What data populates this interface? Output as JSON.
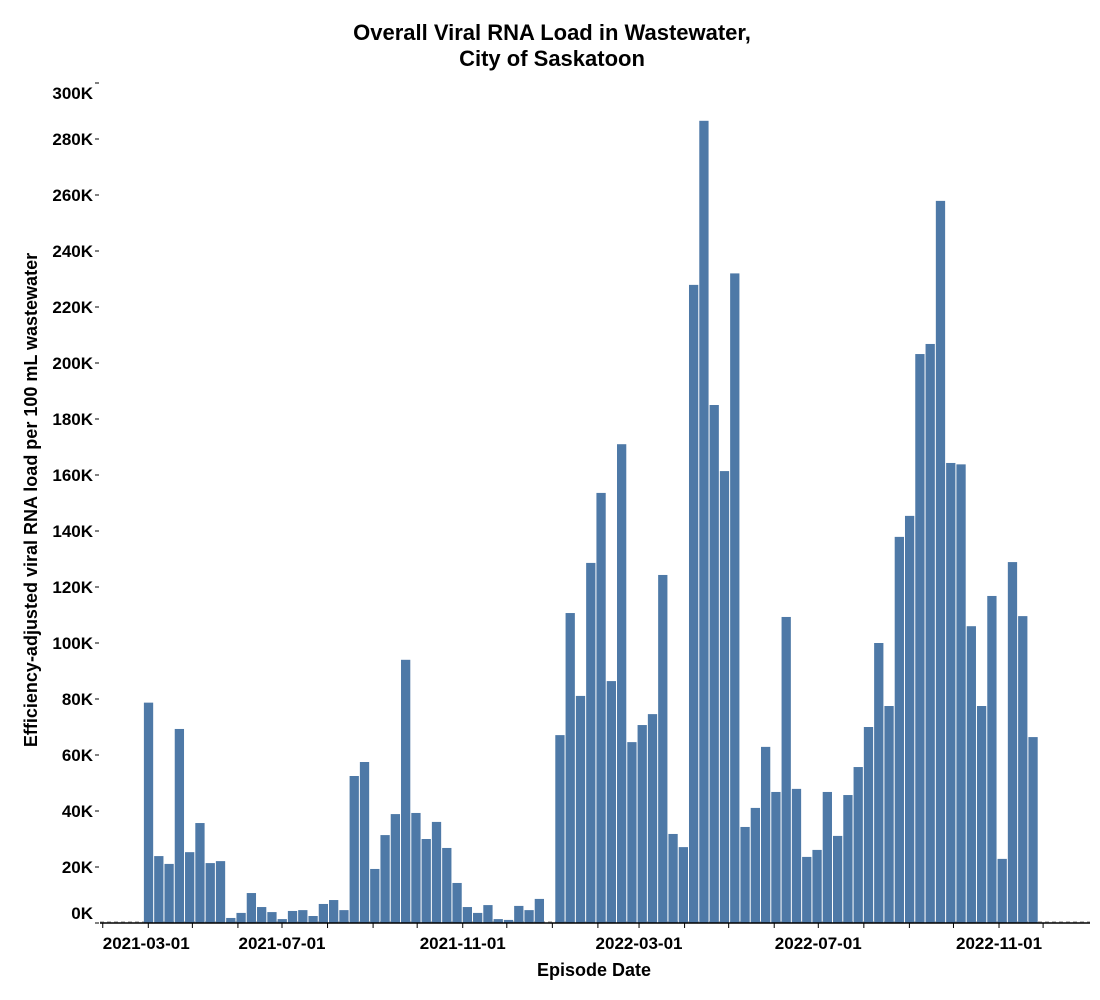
{
  "chart_data": {
    "type": "bar",
    "title": [
      "Overall Viral RNA Load in Wastewater,",
      "City of Saskatoon"
    ],
    "xlabel": "Episode Date",
    "ylabel": "Efficiency-adjusted viral RNA load per 100 mL wastewater",
    "ylim": [
      0,
      300000
    ],
    "yticks": [
      0,
      20000,
      40000,
      60000,
      80000,
      100000,
      120000,
      140000,
      160000,
      180000,
      200000,
      220000,
      240000,
      260000,
      280000,
      300000
    ],
    "ytick_labels": [
      "0K",
      "20K",
      "40K",
      "60K",
      "80K",
      "100K",
      "120K",
      "140K",
      "160K",
      "180K",
      "200K",
      "220K",
      "240K",
      "260K",
      "280K",
      "300K"
    ],
    "xlim": [
      "2021-03-01",
      "2022-12-31"
    ],
    "xtick_labels": [
      "2021-03-01",
      "2021-07-01",
      "2021-11-01",
      "2022-03-01",
      "2022-07-01",
      "2022-11-01"
    ],
    "grid": false,
    "bar_color": "#4e79a7",
    "baseline_color": "#aaaaaa",
    "x": [
      "2021-03-29",
      "2021-04-05",
      "2021-04-12",
      "2021-04-19",
      "2021-04-26",
      "2021-05-03",
      "2021-05-10",
      "2021-05-17",
      "2021-05-24",
      "2021-05-31",
      "2021-06-07",
      "2021-06-14",
      "2021-06-21",
      "2021-06-28",
      "2021-07-05",
      "2021-07-12",
      "2021-07-19",
      "2021-07-26",
      "2021-08-02",
      "2021-08-09",
      "2021-08-16",
      "2021-08-23",
      "2021-08-30",
      "2021-09-06",
      "2021-09-13",
      "2021-09-20",
      "2021-09-27",
      "2021-10-04",
      "2021-10-11",
      "2021-10-18",
      "2021-10-25",
      "2021-11-01",
      "2021-11-08",
      "2021-11-15",
      "2021-11-22",
      "2021-11-29",
      "2021-12-06",
      "2021-12-13",
      "2021-12-20",
      "2021-12-27",
      "2022-01-03",
      "2022-01-10",
      "2022-01-17",
      "2022-01-24",
      "2022-01-31",
      "2022-02-07",
      "2022-02-14",
      "2022-02-21",
      "2022-02-28",
      "2022-03-07",
      "2022-03-14",
      "2022-03-21",
      "2022-03-28",
      "2022-04-04",
      "2022-04-11",
      "2022-04-18",
      "2022-04-25",
      "2022-05-02",
      "2022-05-09",
      "2022-05-16",
      "2022-05-23",
      "2022-05-30",
      "2022-06-06",
      "2022-06-13",
      "2022-06-20",
      "2022-06-27",
      "2022-07-04",
      "2022-07-11",
      "2022-07-18",
      "2022-07-25",
      "2022-08-01",
      "2022-08-08",
      "2022-08-15",
      "2022-08-22",
      "2022-08-29",
      "2022-09-05",
      "2022-09-12",
      "2022-09-19",
      "2022-09-26",
      "2022-10-03",
      "2022-10-10",
      "2022-10-17",
      "2022-10-24",
      "2022-10-31",
      "2022-11-07",
      "2022-11-14",
      "2022-11-21"
    ],
    "values": [
      78700,
      23900,
      21100,
      69300,
      25300,
      35700,
      21400,
      22100,
      1800,
      3600,
      10700,
      5700,
      3900,
      1400,
      4300,
      4600,
      2500,
      6800,
      8200,
      4600,
      52500,
      57500,
      19300,
      31400,
      38900,
      94000,
      39300,
      30000,
      36100,
      26800,
      14300,
      5700,
      3600,
      6400,
      1400,
      1100,
      6100,
      4600,
      8600,
      null,
      67100,
      110700,
      81100,
      128600,
      153600,
      86400,
      171000,
      64600,
      70700,
      74600,
      124300,
      31800,
      27100,
      227900,
      286500,
      185000,
      161400,
      232000,
      34300,
      41100,
      62900,
      46800,
      109300,
      47900,
      23600,
      26100,
      46800,
      31100,
      45700,
      55700,
      70000,
      100000,
      77500,
      137900,
      145400,
      203200,
      206800,
      257900,
      164300,
      163800,
      106000,
      77500,
      116800,
      22900,
      128900,
      109600,
      66400
    ]
  }
}
